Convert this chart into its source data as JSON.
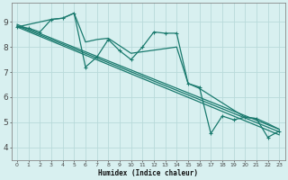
{
  "xlabel": "Humidex (Indice chaleur)",
  "bg_color": "#d8f0f0",
  "line_color": "#1a7a6e",
  "grid_color": "#b8dada",
  "xlim": [
    -0.5,
    23.5
  ],
  "ylim": [
    3.5,
    9.75
  ],
  "xticks": [
    0,
    1,
    2,
    3,
    4,
    5,
    6,
    7,
    8,
    9,
    10,
    11,
    12,
    13,
    14,
    15,
    16,
    17,
    18,
    19,
    20,
    21,
    22,
    23
  ],
  "yticks": [
    4,
    5,
    6,
    7,
    8,
    9
  ],
  "series_main_x": [
    0,
    1,
    2,
    3,
    4,
    5,
    6,
    7,
    8,
    9,
    10,
    11,
    12,
    13,
    14,
    15,
    16,
    17,
    18,
    19,
    20,
    21,
    22,
    23
  ],
  "series_main_y": [
    8.8,
    8.75,
    8.6,
    9.1,
    9.15,
    9.35,
    7.2,
    7.6,
    8.3,
    7.85,
    7.5,
    8.0,
    8.6,
    8.55,
    8.55,
    6.55,
    6.4,
    4.55,
    5.25,
    5.1,
    5.2,
    5.15,
    4.4,
    4.65
  ],
  "trend1_x": [
    0,
    23
  ],
  "trend1_y": [
    8.8,
    4.5
  ],
  "trend2_x": [
    0,
    23
  ],
  "trend2_y": [
    8.85,
    4.62
  ],
  "trend3_x": [
    0,
    23
  ],
  "trend3_y": [
    8.9,
    4.72
  ],
  "envelope_x": [
    0,
    3,
    4,
    5,
    6,
    7,
    8,
    9,
    10,
    14,
    15,
    16,
    20,
    21,
    22,
    23
  ],
  "envelope_y": [
    8.8,
    9.1,
    9.15,
    9.35,
    8.2,
    8.3,
    8.35,
    8.05,
    7.75,
    8.0,
    6.55,
    6.35,
    5.2,
    5.15,
    4.95,
    4.72
  ]
}
